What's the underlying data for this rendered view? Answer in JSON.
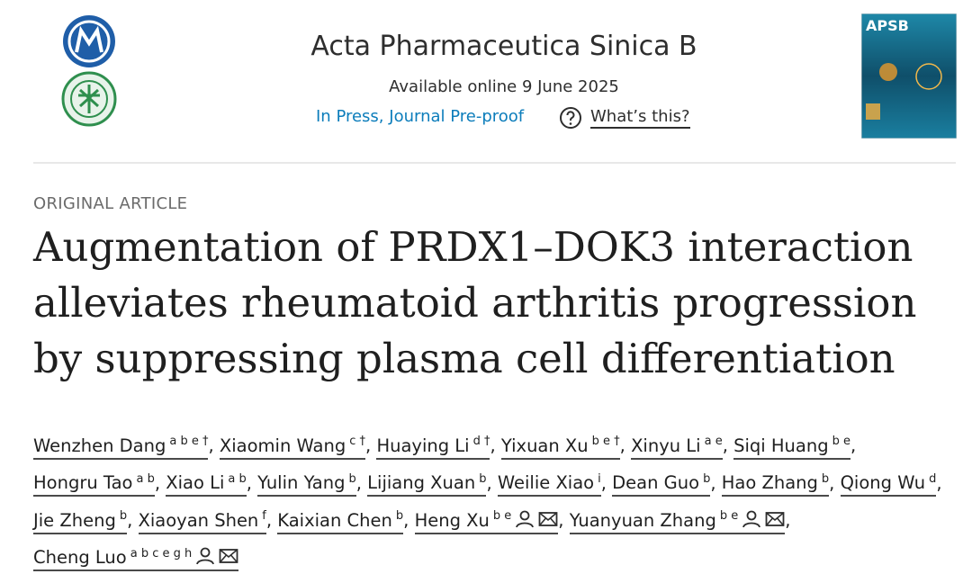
{
  "header": {
    "journal": "Acta Pharmaceutica Sinica B",
    "available": "Available online 9 June 2025",
    "status": "In Press, Journal Pre-proof",
    "help": "What’s this?",
    "cover_title": "APSB"
  },
  "article": {
    "type": "ORIGINAL ARTICLE",
    "title": "Augmentation of PRDX1–DOK3 interaction alleviates rheumatoid arthritis progression by suppressing plasma cell differentiation",
    "separator": ",",
    "authors": [
      {
        "name": "Wenzhen Dang",
        "sup": "a b e †"
      },
      {
        "name": "Xiaomin Wang",
        "sup": "c †"
      },
      {
        "name": "Huaying Li",
        "sup": "d †"
      },
      {
        "name": "Yixuan Xu",
        "sup": "b e †"
      },
      {
        "name": "Xinyu Li",
        "sup": "a e"
      },
      {
        "name": "Siqi Huang",
        "sup": "b e"
      },
      {
        "name": "Hongru Tao",
        "sup": "a b"
      },
      {
        "name": "Xiao Li",
        "sup": "a b"
      },
      {
        "name": "Yulin Yang",
        "sup": "b"
      },
      {
        "name": "Lijiang Xuan",
        "sup": "b"
      },
      {
        "name": "Weilie Xiao",
        "sup": "i"
      },
      {
        "name": "Dean Guo",
        "sup": "b"
      },
      {
        "name": "Hao Zhang",
        "sup": "b"
      },
      {
        "name": "Qiong Wu",
        "sup": "d"
      },
      {
        "name": "Jie Zheng",
        "sup": "b"
      },
      {
        "name": "Xiaoyan Shen",
        "sup": "f"
      },
      {
        "name": "Kaixian Chen",
        "sup": "b"
      },
      {
        "name": "Heng Xu",
        "sup": "b e",
        "corresponding": true
      },
      {
        "name": "Yuanyuan Zhang",
        "sup": "b e",
        "corresponding": true
      },
      {
        "name": "Cheng Luo",
        "sup": "a b c e g h",
        "corresponding": true
      }
    ]
  }
}
